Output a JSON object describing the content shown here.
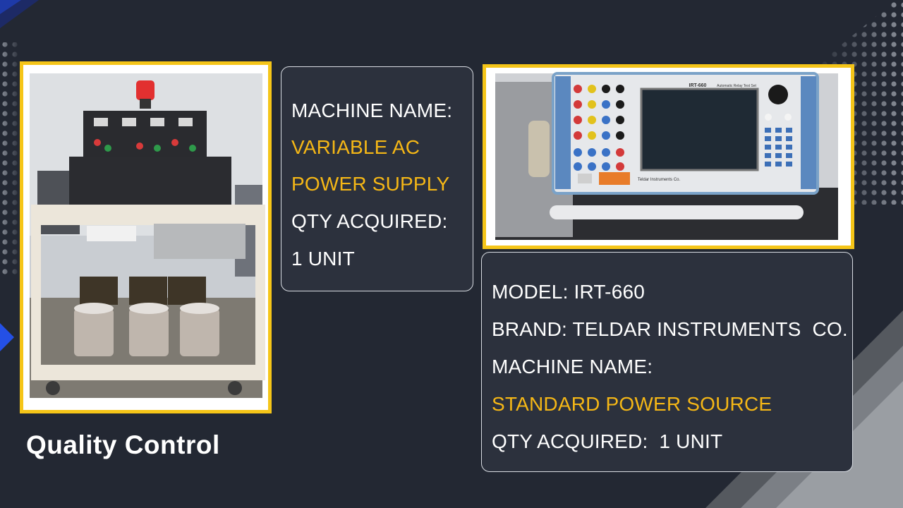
{
  "colors": {
    "background": "#232833",
    "frame": "#f5c518",
    "accent_text": "#f5b716",
    "text": "#ffffff",
    "box": "#2c313d"
  },
  "left_photo": {
    "subject": "variable-ac-power-supply-cart",
    "panel_brand": ""
  },
  "right_photo": {
    "subject": "irt-660-relay-test-set",
    "device_model": "IRT-660",
    "device_subtitle": "Automatic Relay Test Set",
    "device_brand": "Teldar Instruments Co."
  },
  "box1": {
    "line1": "MACHINE NAME:",
    "line2": "VARIABLE AC",
    "line3": "POWER SUPPLY",
    "line4": "QTY ACQUIRED:",
    "line5": "1 UNIT"
  },
  "box2": {
    "line1": "MODEL: IRT-660",
    "line2": "BRAND: TELDAR INSTRUMENTS  CO.",
    "line3": "MACHINE NAME:",
    "line4": "STANDARD POWER SOURCE",
    "line5": "QTY ACQUIRED:  1 UNIT"
  },
  "caption": "Quality Control"
}
